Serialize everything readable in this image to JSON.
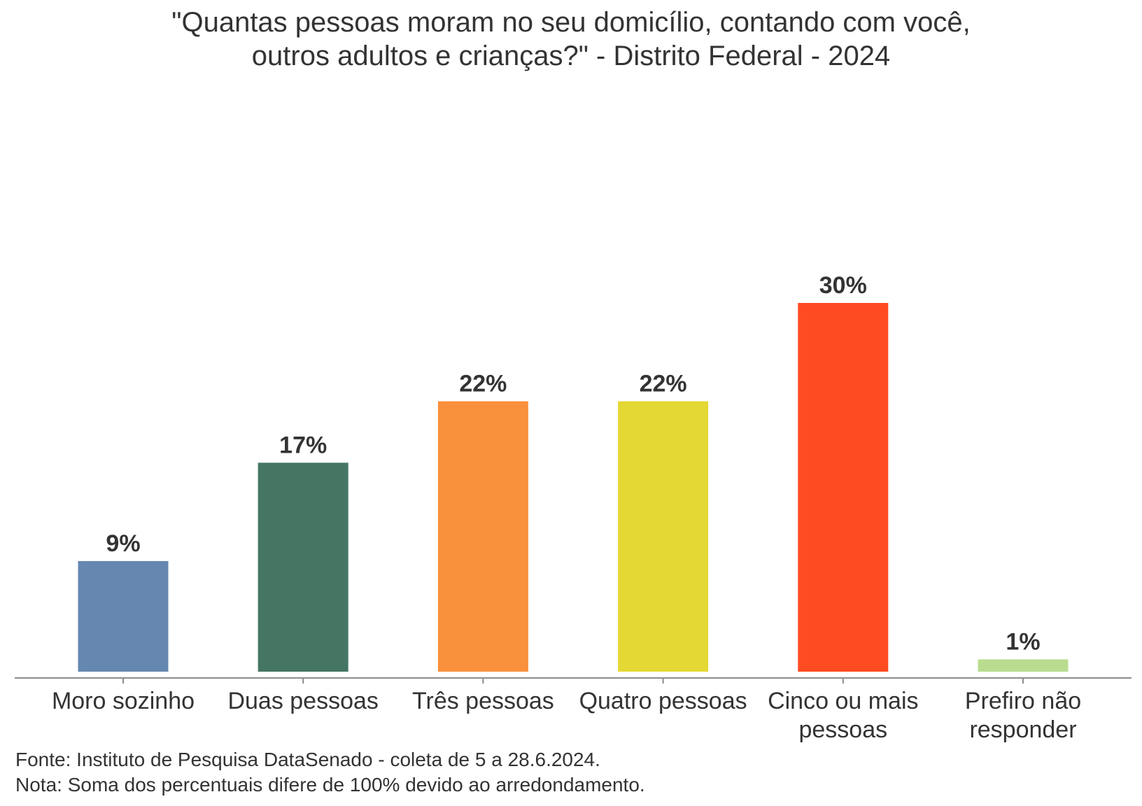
{
  "chart_data": {
    "type": "bar",
    "title_lines": [
      "\"Quantas pessoas moram no seu domicílio, contando com você,",
      "outros adultos e crianças?\" - Distrito Federal - 2024"
    ],
    "title": "\"Quantas pessoas moram no seu domicílio, contando com você, outros adultos e crianças?\" - Distrito Federal - 2024",
    "categories": [
      [
        "Moro sozinho"
      ],
      [
        "Duas pessoas"
      ],
      [
        "Três pessoas"
      ],
      [
        "Quatro pessoas"
      ],
      [
        "Cinco ou mais",
        "pessoas"
      ],
      [
        "Prefiro não",
        "responder"
      ]
    ],
    "values": [
      9,
      17,
      22,
      22,
      30,
      1
    ],
    "data_labels": [
      "9%",
      "17%",
      "22%",
      "22%",
      "30%",
      "1%"
    ],
    "colors": [
      "#6688b0",
      "#457563",
      "#f9913c",
      "#e4d835",
      "#ff4b22",
      "#b9dc8f"
    ],
    "xlabel": "",
    "ylabel": "",
    "ylim": [
      0,
      30
    ],
    "grid": false,
    "legend": "none",
    "axis_color": "#8c8c8c"
  },
  "footer": {
    "source": "Fonte: Instituto de Pesquisa DataSenado - coleta de 5 a 28.6.2024.",
    "note": "Nota: Soma dos percentuais difere de 100% devido ao arredondamento."
  }
}
